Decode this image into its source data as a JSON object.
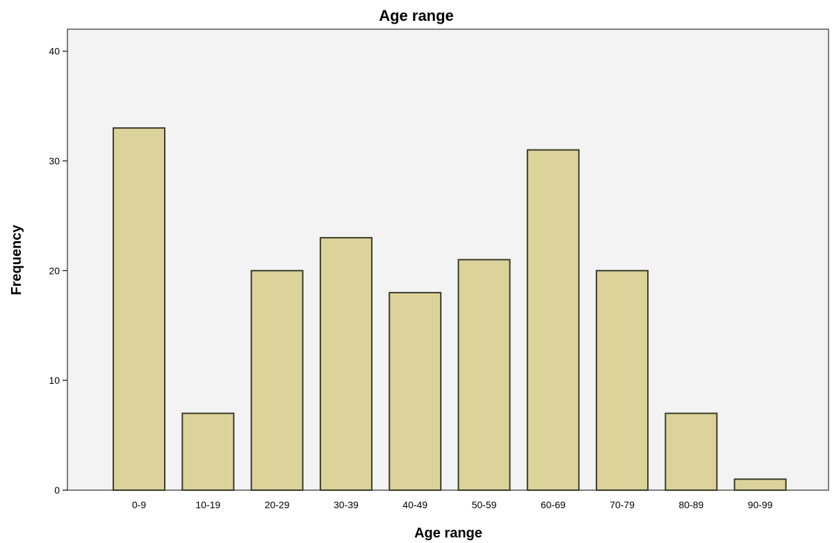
{
  "chart_data": {
    "type": "bar",
    "title": "Age range",
    "xlabel": "Age range",
    "ylabel": "Frequency",
    "categories": [
      "0-9",
      "10-19",
      "20-29",
      "30-39",
      "40-49",
      "50-59",
      "60-69",
      "70-79",
      "80-89",
      "90-99"
    ],
    "values": [
      33,
      7,
      20,
      23,
      18,
      21,
      31,
      20,
      7,
      1
    ],
    "ylim": [
      0,
      42
    ],
    "yticks": [
      0,
      10,
      20,
      30,
      40
    ],
    "grid": false,
    "legend": "none",
    "colors": {
      "bar_fill": "#dcd39b",
      "bar_stroke": "#3a3a2a",
      "plot_background": "#f3f3f3",
      "frame": "#555555"
    }
  }
}
